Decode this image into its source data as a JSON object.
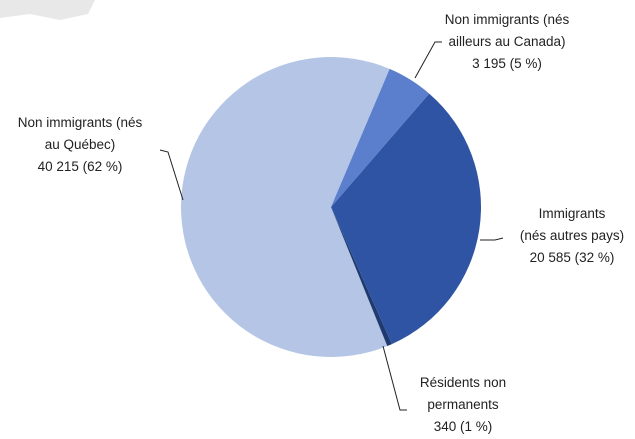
{
  "chart_data": {
    "type": "pie",
    "categories": [
      "Non immigrants (nés\nailleurs au Canada)",
      "Immigrants\n(nés autres pays)",
      "Résidents non\npermanents",
      "Non immigrants (nés\nau Québec)"
    ],
    "values": [
      3195,
      20585,
      340,
      40215
    ],
    "value_labels": [
      "3 195 (5 %)",
      "20 585 (32 %)",
      "340 (1 %)",
      "40 215 (62 %)"
    ],
    "colors": [
      "#5b7fcc",
      "#2f54a3",
      "#1f3a6e",
      "#b4c5e6"
    ]
  }
}
